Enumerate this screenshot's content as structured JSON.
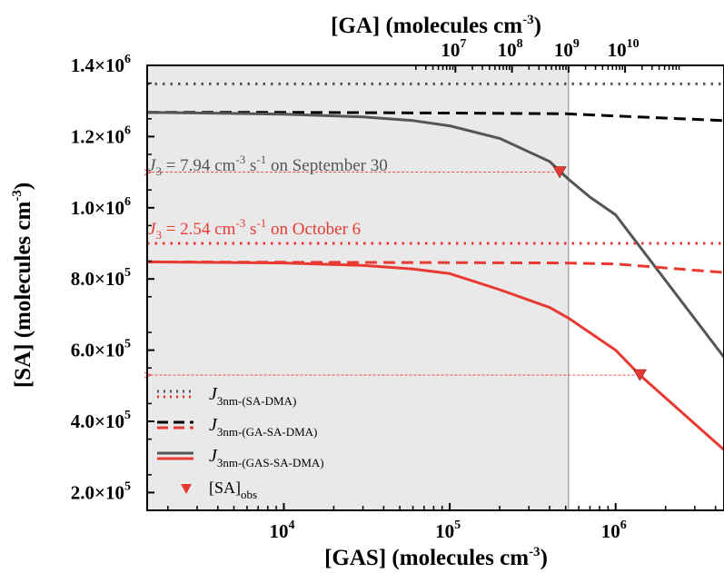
{
  "chart_data": {
    "type": "line",
    "xlabel": "[GAS] (molecules cm",
    "xlabel_sup": "-3",
    "xlabel_end": ")",
    "x_scale": "log",
    "xlim": [
      1500,
      4500000
    ],
    "x_ticks": [
      {
        "value": 10000,
        "base": "10",
        "exp": "4"
      },
      {
        "value": 100000,
        "base": "10",
        "exp": "5"
      },
      {
        "value": 1000000,
        "base": "10",
        "exp": "6"
      }
    ],
    "x2label": "[GA] (molecules cm",
    "x2label_sup": "-3",
    "x2label_end": ")",
    "x2_scale": "log",
    "x2_ticks": [
      {
        "value": 10000000,
        "base": "10",
        "exp": "7"
      },
      {
        "value": 100000000,
        "base": "10",
        "exp": "8"
      },
      {
        "value": 1000000000,
        "base": "10",
        "exp": "9"
      },
      {
        "value": 10000000000,
        "base": "10",
        "exp": "10"
      }
    ],
    "ylabel": "[SA] (molecules cm",
    "ylabel_sup": "-3",
    "ylabel_end": ")",
    "ylim": [
      150000,
      1400000
    ],
    "y_ticks": [
      {
        "value": 200000,
        "mant": "2.0×10",
        "exp": "5"
      },
      {
        "value": 400000,
        "mant": "4.0×10",
        "exp": "5"
      },
      {
        "value": 600000,
        "mant": "6.0×10",
        "exp": "5"
      },
      {
        "value": 800000,
        "mant": "8.0×10",
        "exp": "5"
      },
      {
        "value": 1000000,
        "mant": "1.0×10",
        "exp": "6"
      },
      {
        "value": 1200000,
        "mant": "1.2×10",
        "exp": "6"
      },
      {
        "value": 1400000,
        "mant": "1.4×10",
        "exp": "6"
      }
    ],
    "shaded_region": {
      "x": [
        1500,
        520000
      ],
      "color": "#e9e9e9"
    },
    "colors": {
      "sep30": "#555555",
      "oct6": "#e83a32"
    },
    "series": [
      {
        "key": "sep30_sa_dma",
        "color": "#555555",
        "style": "dotted",
        "x": [
          1500,
          4500000
        ],
        "y": [
          1348000,
          1348000
        ]
      },
      {
        "key": "sep30_ga_sa_dma",
        "color": "#000000",
        "style": "dashed",
        "x": [
          1500,
          10000,
          100000,
          500000,
          1000000,
          4500000
        ],
        "y": [
          1268000,
          1268000,
          1266000,
          1264000,
          1258000,
          1245000
        ]
      },
      {
        "key": "sep30_gas_sa_dma",
        "color": "#555555",
        "style": "solid",
        "x": [
          1500,
          10000,
          30000,
          60000,
          100000,
          200000,
          400000,
          520000,
          700000,
          1000000,
          4500000
        ],
        "y": [
          1268000,
          1263000,
          1255000,
          1245000,
          1230000,
          1195000,
          1130000,
          1080000,
          1030000,
          980000,
          580000
        ]
      },
      {
        "key": "oct6_sa_dma",
        "color": "#e83a32",
        "style": "dotted",
        "x": [
          1500,
          4500000
        ],
        "y": [
          900000,
          900000
        ]
      },
      {
        "key": "oct6_ga_sa_dma",
        "color": "#e83a32",
        "style": "dashed",
        "x": [
          1500,
          10000,
          100000,
          500000,
          1000000,
          4500000
        ],
        "y": [
          848000,
          847000,
          846000,
          845000,
          842000,
          818000
        ]
      },
      {
        "key": "oct6_gas_sa_dma",
        "color": "#e83a32",
        "style": "solid",
        "x": [
          1500,
          10000,
          30000,
          60000,
          100000,
          200000,
          400000,
          520000,
          1000000,
          1400000,
          4500000
        ],
        "y": [
          848000,
          845000,
          838000,
          828000,
          815000,
          770000,
          720000,
          690000,
          600000,
          530000,
          320000
        ]
      }
    ],
    "observations": [
      {
        "key": "obs_sep30",
        "x": 460000,
        "y": 1100000,
        "color": "#e83a32"
      },
      {
        "key": "obs_oct6",
        "x": 1400000,
        "y": 530000,
        "color": "#e83a32"
      }
    ],
    "annotations": {
      "sep30": {
        "j": "J",
        "sub": "3",
        "mid": " = 7.94 cm",
        "sup1": "-3",
        "s": " s",
        "sup2": "-1",
        "end": " on September 30"
      },
      "oct6": {
        "j": "J",
        "sub": "3",
        "mid": " = 2.54 cm",
        "sup1": "-3",
        "s": " s",
        "sup2": "-1",
        "end": " on October 6"
      }
    },
    "legend": {
      "placement": "bottom-left",
      "entries": [
        {
          "style": "dotted",
          "main": "J",
          "sub": "3nm-(SA-DMA)"
        },
        {
          "style": "dashed",
          "main": "J",
          "sub": "3nm-(GA-SA-DMA)"
        },
        {
          "style": "solid",
          "main": "J",
          "sub": "3nm-(GAS-SA-DMA)"
        },
        {
          "style": "marker",
          "main": "[SA]",
          "sub": "obs"
        }
      ]
    }
  }
}
